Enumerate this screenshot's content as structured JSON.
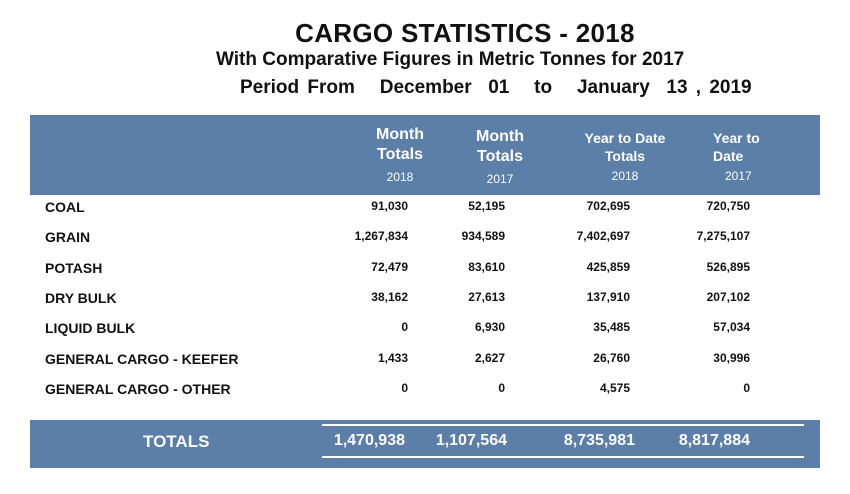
{
  "title": "CARGO STATISTICS - 2018",
  "subtitle": "With Comparative Figures in Metric Tonnes for 2017",
  "period": {
    "prefix": "Period From",
    "start": "December  01",
    "to": "to",
    "end": "January  13 , 2019"
  },
  "header": {
    "col1": {
      "line1": "Month",
      "line2": "Totals",
      "year": "2018"
    },
    "col2": {
      "line1": "Month",
      "line2": "Totals",
      "year": "2017"
    },
    "col3": {
      "line1": "Year to Date",
      "line2": "Totals",
      "year": "2018"
    },
    "col4": {
      "line1": "Year to",
      "line2": "Date",
      "year": "2017"
    }
  },
  "rows": [
    {
      "name": "COAL",
      "values": [
        "91,030",
        "52,195",
        "702,695",
        "720,750"
      ]
    },
    {
      "name": "GRAIN",
      "values": [
        "1,267,834",
        "934,589",
        "7,402,697",
        "7,275,107"
      ]
    },
    {
      "name": "POTASH",
      "values": [
        "72,479",
        "83,610",
        "425,859",
        "526,895"
      ]
    },
    {
      "name": "DRY BULK",
      "values": [
        "38,162",
        "27,613",
        "137,910",
        "207,102"
      ]
    },
    {
      "name": "LIQUID BULK",
      "values": [
        "0",
        "6,930",
        "35,485",
        "57,034"
      ]
    },
    {
      "name": "GENERAL CARGO - KEEFER",
      "values": [
        "1,433",
        "2,627",
        "26,760",
        "30,996"
      ]
    },
    {
      "name": "GENERAL CARGO - OTHER",
      "values": [
        "0",
        "0",
        "4,575",
        "0"
      ]
    }
  ],
  "totals": {
    "label": "TOTALS",
    "values": [
      "1,470,938",
      "1,107,564",
      "8,735,981",
      "8,817,884"
    ]
  },
  "colors": {
    "band": "#5b7fa8"
  }
}
